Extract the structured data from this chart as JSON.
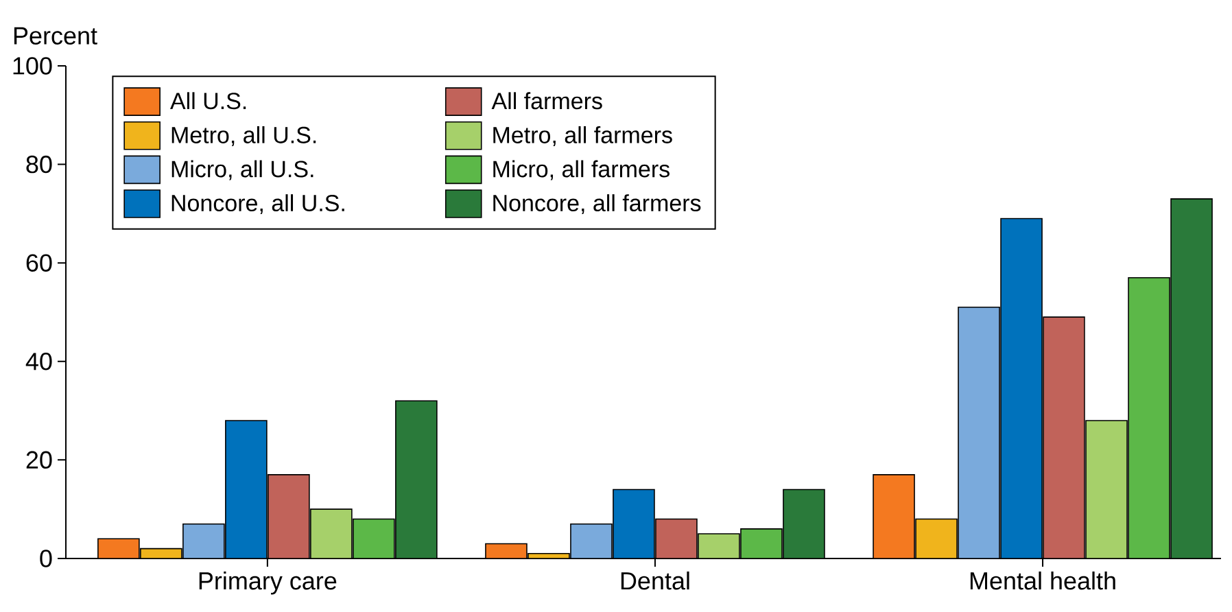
{
  "chart_data": {
    "type": "bar",
    "ylabel": "Percent",
    "categories": [
      "Primary care",
      "Dental",
      "Mental health"
    ],
    "series": [
      {
        "name": "All U.S.",
        "color": "#f47920",
        "values": [
          4,
          3,
          17
        ]
      },
      {
        "name": "Metro, all U.S.",
        "color": "#f0b41c",
        "values": [
          2,
          1,
          8
        ]
      },
      {
        "name": "Micro, all U.S.",
        "color": "#7aaadc",
        "values": [
          7,
          7,
          51
        ]
      },
      {
        "name": "Noncore, all U.S.",
        "color": "#0072bc",
        "values": [
          28,
          14,
          69
        ]
      },
      {
        "name": "All farmers",
        "color": "#c1635a",
        "values": [
          17,
          8,
          49
        ]
      },
      {
        "name": "Metro, all farmers",
        "color": "#a6d06a",
        "values": [
          10,
          5,
          28
        ]
      },
      {
        "name": "Micro, all farmers",
        "color": "#5cb848",
        "values": [
          8,
          6,
          57
        ]
      },
      {
        "name": "Noncore, all farmers",
        "color": "#2a7a3a",
        "values": [
          32,
          14,
          73
        ]
      }
    ],
    "ylim": [
      0,
      100
    ],
    "yticks": [
      0,
      20,
      40,
      60,
      80,
      100
    ],
    "grid": false,
    "legend": "top left"
  }
}
